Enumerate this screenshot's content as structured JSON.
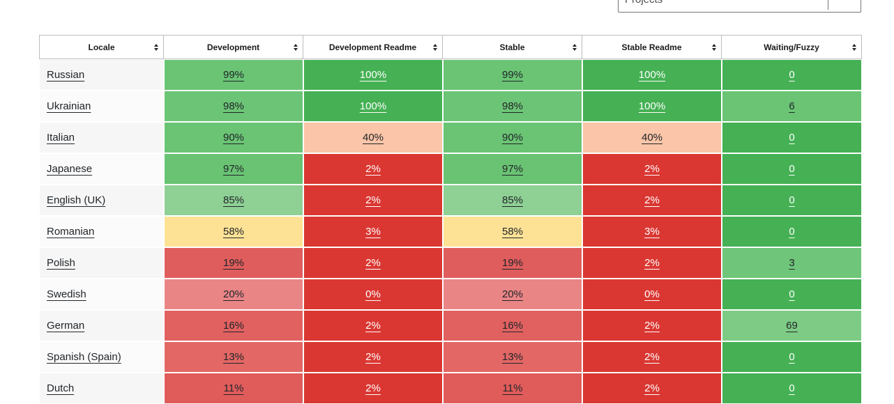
{
  "filters": {
    "projects_label": "Projects"
  },
  "table": {
    "columns": [
      {
        "label": "Locale"
      },
      {
        "label": "Development"
      },
      {
        "label": "Development Readme"
      },
      {
        "label": "Stable"
      },
      {
        "label": "Stable Readme"
      },
      {
        "label": "Waiting/Fuzzy"
      }
    ],
    "rows": [
      {
        "locale": "Russian",
        "cells": [
          {
            "text": "99%",
            "bg": "#6ac474",
            "fg": "#212529"
          },
          {
            "text": "100%",
            "bg": "#45b154",
            "fg": "#ffffff"
          },
          {
            "text": "99%",
            "bg": "#6ac474",
            "fg": "#212529"
          },
          {
            "text": "100%",
            "bg": "#45b154",
            "fg": "#ffffff"
          },
          {
            "text": "0",
            "bg": "#45b154",
            "fg": "#ffffff"
          }
        ]
      },
      {
        "locale": "Ukrainian",
        "cells": [
          {
            "text": "98%",
            "bg": "#6cc576",
            "fg": "#212529"
          },
          {
            "text": "100%",
            "bg": "#45b154",
            "fg": "#ffffff"
          },
          {
            "text": "98%",
            "bg": "#6cc576",
            "fg": "#212529"
          },
          {
            "text": "100%",
            "bg": "#45b154",
            "fg": "#ffffff"
          },
          {
            "text": "6",
            "bg": "#6ac474",
            "fg": "#212529"
          }
        ]
      },
      {
        "locale": "Italian",
        "cells": [
          {
            "text": "90%",
            "bg": "#6ac474",
            "fg": "#212529"
          },
          {
            "text": "40%",
            "bg": "#fac5a8",
            "fg": "#212529"
          },
          {
            "text": "90%",
            "bg": "#6ac474",
            "fg": "#212529"
          },
          {
            "text": "40%",
            "bg": "#fac5a8",
            "fg": "#212529"
          },
          {
            "text": "0",
            "bg": "#45b154",
            "fg": "#ffffff"
          }
        ]
      },
      {
        "locale": "Japanese",
        "cells": [
          {
            "text": "97%",
            "bg": "#69c373",
            "fg": "#212529"
          },
          {
            "text": "2%",
            "bg": "#da3732",
            "fg": "#ffffff"
          },
          {
            "text": "97%",
            "bg": "#69c373",
            "fg": "#212529"
          },
          {
            "text": "2%",
            "bg": "#da3732",
            "fg": "#ffffff"
          },
          {
            "text": "0",
            "bg": "#45b154",
            "fg": "#ffffff"
          }
        ]
      },
      {
        "locale": "English (UK)",
        "cells": [
          {
            "text": "85%",
            "bg": "#8fd095",
            "fg": "#212529"
          },
          {
            "text": "2%",
            "bg": "#da3732",
            "fg": "#ffffff"
          },
          {
            "text": "85%",
            "bg": "#8fd095",
            "fg": "#212529"
          },
          {
            "text": "2%",
            "bg": "#da3732",
            "fg": "#ffffff"
          },
          {
            "text": "0",
            "bg": "#45b154",
            "fg": "#ffffff"
          }
        ]
      },
      {
        "locale": "Romanian",
        "cells": [
          {
            "text": "58%",
            "bg": "#fde296",
            "fg": "#212529"
          },
          {
            "text": "3%",
            "bg": "#da3732",
            "fg": "#ffffff"
          },
          {
            "text": "58%",
            "bg": "#fde296",
            "fg": "#212529"
          },
          {
            "text": "3%",
            "bg": "#da3732",
            "fg": "#ffffff"
          },
          {
            "text": "0",
            "bg": "#45b154",
            "fg": "#ffffff"
          }
        ]
      },
      {
        "locale": "Polish",
        "cells": [
          {
            "text": "19%",
            "bg": "#e05d5d",
            "fg": "#212529"
          },
          {
            "text": "2%",
            "bg": "#da3732",
            "fg": "#ffffff"
          },
          {
            "text": "19%",
            "bg": "#e05d5d",
            "fg": "#212529"
          },
          {
            "text": "2%",
            "bg": "#da3732",
            "fg": "#ffffff"
          },
          {
            "text": "3",
            "bg": "#6fc67a",
            "fg": "#212529"
          }
        ]
      },
      {
        "locale": "Swedish",
        "cells": [
          {
            "text": "20%",
            "bg": "#ea8586",
            "fg": "#212529"
          },
          {
            "text": "0%",
            "bg": "#da3732",
            "fg": "#ffffff"
          },
          {
            "text": "20%",
            "bg": "#ea8586",
            "fg": "#212529"
          },
          {
            "text": "0%",
            "bg": "#da3732",
            "fg": "#ffffff"
          },
          {
            "text": "0",
            "bg": "#45b154",
            "fg": "#ffffff"
          }
        ]
      },
      {
        "locale": "German",
        "cells": [
          {
            "text": "16%",
            "bg": "#e16160",
            "fg": "#212529"
          },
          {
            "text": "2%",
            "bg": "#da3732",
            "fg": "#ffffff"
          },
          {
            "text": "16%",
            "bg": "#e16160",
            "fg": "#212529"
          },
          {
            "text": "2%",
            "bg": "#da3732",
            "fg": "#ffffff"
          },
          {
            "text": "69",
            "bg": "#7ecb86",
            "fg": "#212529"
          }
        ]
      },
      {
        "locale": "Spanish (Spain)",
        "cells": [
          {
            "text": "13%",
            "bg": "#e26765",
            "fg": "#212529"
          },
          {
            "text": "2%",
            "bg": "#da3732",
            "fg": "#ffffff"
          },
          {
            "text": "13%",
            "bg": "#e26765",
            "fg": "#212529"
          },
          {
            "text": "2%",
            "bg": "#da3732",
            "fg": "#ffffff"
          },
          {
            "text": "0",
            "bg": "#45b154",
            "fg": "#ffffff"
          }
        ]
      },
      {
        "locale": "Dutch",
        "cells": [
          {
            "text": "11%",
            "bg": "#e05c5b",
            "fg": "#212529"
          },
          {
            "text": "2%",
            "bg": "#da3732",
            "fg": "#ffffff"
          },
          {
            "text": "11%",
            "bg": "#e05c5b",
            "fg": "#212529"
          },
          {
            "text": "2%",
            "bg": "#da3732",
            "fg": "#ffffff"
          },
          {
            "text": "0",
            "bg": "#45b154",
            "fg": "#ffffff"
          }
        ]
      }
    ]
  },
  "colors": {
    "green_high": "#45b154",
    "green_mid": "#6ac474",
    "green_low": "#8fd095",
    "yellow": "#fde296",
    "peach": "#fac5a8",
    "red_bright": "#da3732",
    "red_mid": "#e05d5d",
    "red_light": "#ea8586",
    "header_border": "#bdbdbd",
    "row_stripe": "#f6f6f6"
  }
}
